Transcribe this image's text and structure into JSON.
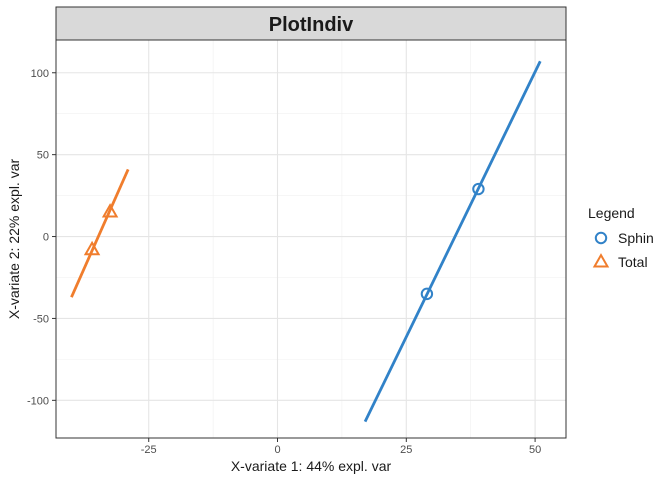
{
  "chart_data": {
    "type": "scatter",
    "title": "PlotIndiv",
    "xlabel": "X-variate 1: 44% expl. var",
    "ylabel": "X-variate 2: 22% expl. var",
    "xlim": [
      -43,
      56
    ],
    "ylim": [
      -123,
      120
    ],
    "x_ticks": [
      -25,
      0,
      25,
      50
    ],
    "y_ticks": [
      -100,
      -50,
      0,
      50,
      100
    ],
    "grid": true,
    "legend": {
      "title": "Legend",
      "position": "right"
    },
    "series": [
      {
        "name": "Sphin",
        "marker": "circle",
        "color": "#3182c8",
        "points": [
          [
            29,
            -35
          ],
          [
            39,
            29
          ]
        ],
        "fit_line": [
          [
            17,
            -113
          ],
          [
            51,
            107
          ]
        ]
      },
      {
        "name": "Total",
        "marker": "triangle",
        "color": "#f07d2d",
        "points": [
          [
            -36,
            -8
          ],
          [
            -32.5,
            15
          ]
        ],
        "fit_line": [
          [
            -40,
            -37
          ],
          [
            -29,
            41
          ]
        ]
      }
    ]
  }
}
